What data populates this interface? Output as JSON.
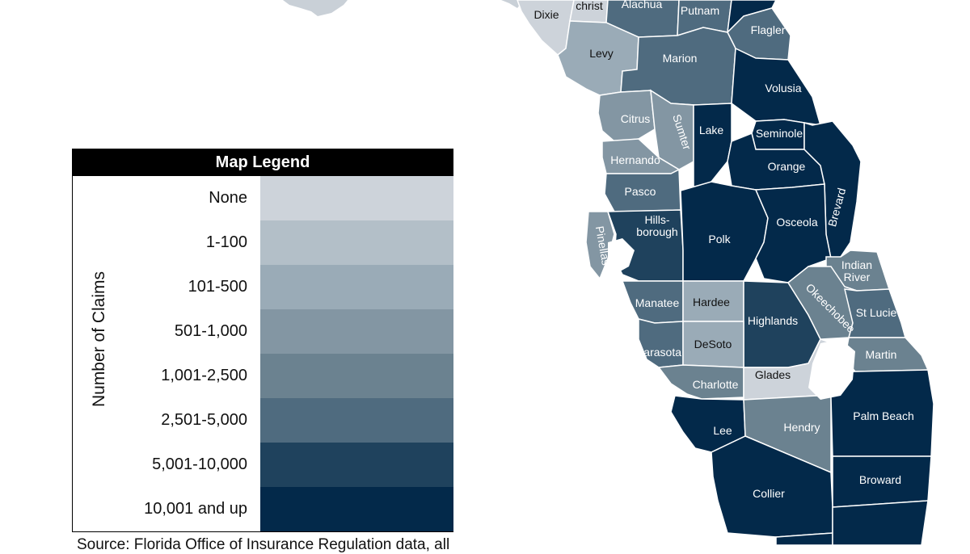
{
  "legend": {
    "title": "Map Legend",
    "axis_label": "Number of Claims",
    "bins": [
      {
        "label": "None",
        "color": "#cdd3da"
      },
      {
        "label": "1-100",
        "color": "#b3bfc8"
      },
      {
        "label": "101-500",
        "color": "#9aabb7"
      },
      {
        "label": "501-1,000",
        "color": "#8396a3"
      },
      {
        "label": "1,001-2,500",
        "color": "#6b8290"
      },
      {
        "label": "2,501-5,000",
        "color": "#4f6b7f"
      },
      {
        "label": "5,001-10,000",
        "color": "#1f425d"
      },
      {
        "label": "10,001 and up",
        "color": "#03294a"
      }
    ]
  },
  "source": "Source: Florida Office of Insurance Regulation data, all",
  "counties": [
    {
      "name": "Dixie",
      "bin": 0
    },
    {
      "name": "christ",
      "bin": 0
    },
    {
      "name": "Alachua",
      "bin": 5
    },
    {
      "name": "Putnam",
      "bin": 5
    },
    {
      "name": "Flagler",
      "bin": 5
    },
    {
      "name": "Levy",
      "bin": 2
    },
    {
      "name": "Marion",
      "bin": 5
    },
    {
      "name": "Volusia",
      "bin": 7
    },
    {
      "name": "Citrus",
      "bin": 3
    },
    {
      "name": "Sumter",
      "bin": 3
    },
    {
      "name": "Lake",
      "bin": 7
    },
    {
      "name": "Seminole",
      "bin": 7
    },
    {
      "name": "Hernando",
      "bin": 3
    },
    {
      "name": "Orange",
      "bin": 7
    },
    {
      "name": "Brevard",
      "bin": 7
    },
    {
      "name": "Pasco",
      "bin": 5
    },
    {
      "name": "Hills-",
      "bin": 6
    },
    {
      "name": "borough",
      "bin": 6
    },
    {
      "name": "Pinellas",
      "bin": 3
    },
    {
      "name": "Polk",
      "bin": 7
    },
    {
      "name": "Osceola",
      "bin": 7
    },
    {
      "name": "Indian",
      "bin": 4
    },
    {
      "name": "River",
      "bin": 4
    },
    {
      "name": "Manatee",
      "bin": 5
    },
    {
      "name": "Hardee",
      "bin": 2
    },
    {
      "name": "Highlands",
      "bin": 6
    },
    {
      "name": "Okeechobee",
      "bin": 4
    },
    {
      "name": "St Lucie",
      "bin": 5
    },
    {
      "name": "Sarasota",
      "bin": 5
    },
    {
      "name": "DeSoto",
      "bin": 2
    },
    {
      "name": "Martin",
      "bin": 4
    },
    {
      "name": "Charlotte",
      "bin": 4
    },
    {
      "name": "Glades",
      "bin": 0
    },
    {
      "name": "Hendry",
      "bin": 4
    },
    {
      "name": "Lee",
      "bin": 7
    },
    {
      "name": "Palm Beach",
      "bin": 7
    },
    {
      "name": "Broward",
      "bin": 7
    },
    {
      "name": "Collier",
      "bin": 7
    }
  ]
}
